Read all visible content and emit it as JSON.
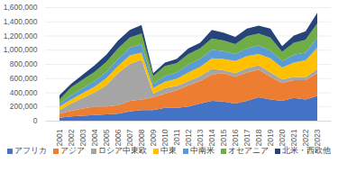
{
  "chart_data": {
    "type": "area",
    "stacked": true,
    "grid": true,
    "categories": [
      "2001",
      "2002",
      "2003",
      "2004",
      "2005",
      "2006",
      "2007",
      "2008",
      "2009",
      "2010",
      "2011",
      "2012",
      "2013",
      "2014",
      "2015",
      "2016",
      "2017",
      "2018",
      "2019",
      "2020",
      "2021",
      "2022",
      "2023"
    ],
    "ylim": [
      0,
      1600000
    ],
    "yticks": [
      0,
      {
        "value": 200000,
        "label": "200,000"
      },
      {
        "value": 400000,
        "label": "400,000"
      },
      {
        "value": 600000,
        "label": "600,000"
      },
      {
        "value": 800000,
        "label": "800,000"
      },
      {
        "value": 1000000,
        "label": "1,000,000"
      },
      {
        "value": 1200000,
        "label": "1,200,000"
      },
      {
        "value": 1400000,
        "label": "1,400,000"
      },
      {
        "value": 1600000,
        "label": "1,600,000"
      }
    ],
    "legend": "bottom",
    "series": [
      {
        "name": "アフリカ",
        "color": "#4472c4",
        "values": [
          40000,
          60000,
          70000,
          80000,
          90000,
          100000,
          130000,
          150000,
          150000,
          180000,
          180000,
          200000,
          240000,
          280000,
          270000,
          240000,
          280000,
          330000,
          300000,
          280000,
          320000,
          300000,
          350000
        ]
      },
      {
        "name": "アジア",
        "color": "#ed7d31",
        "values": [
          60000,
          80000,
          100000,
          120000,
          110000,
          120000,
          150000,
          150000,
          180000,
          200000,
          250000,
          300000,
          320000,
          370000,
          400000,
          380000,
          400000,
          390000,
          320000,
          250000,
          250000,
          270000,
          320000
        ]
      },
      {
        "name": "ロシア中東欧",
        "color": "#a5a5a5",
        "values": [
          50000,
          100000,
          150000,
          200000,
          300000,
          450000,
          520000,
          560000,
          50000,
          80000,
          60000,
          60000,
          70000,
          80000,
          40000,
          50000,
          60000,
          60000,
          60000,
          50000,
          50000,
          40000,
          60000
        ]
      },
      {
        "name": "中東",
        "color": "#ffc000",
        "values": [
          50000,
          60000,
          70000,
          80000,
          100000,
          100000,
          120000,
          100000,
          80000,
          90000,
          100000,
          120000,
          130000,
          150000,
          160000,
          170000,
          170000,
          160000,
          200000,
          170000,
          200000,
          240000,
          300000
        ]
      },
      {
        "name": "中南米",
        "color": "#5b9bd5",
        "values": [
          40000,
          60000,
          70000,
          80000,
          90000,
          100000,
          110000,
          120000,
          60000,
          80000,
          90000,
          110000,
          110000,
          120000,
          110000,
          100000,
          110000,
          120000,
          110000,
          90000,
          110000,
          110000,
          140000
        ]
      },
      {
        "name": "オセアニア",
        "color": "#70ad47",
        "values": [
          60000,
          110000,
          120000,
          130000,
          140000,
          150000,
          140000,
          150000,
          110000,
          140000,
          130000,
          150000,
          150000,
          160000,
          150000,
          140000,
          170000,
          170000,
          180000,
          130000,
          170000,
          180000,
          200000
        ]
      },
      {
        "name": "北米・西欧他",
        "color": "#264478",
        "values": [
          60000,
          50000,
          70000,
          90000,
          100000,
          110000,
          110000,
          120000,
          40000,
          50000,
          60000,
          80000,
          80000,
          120000,
          110000,
          100000,
          110000,
          110000,
          130000,
          80000,
          100000,
          120000,
          150000
        ]
      }
    ]
  }
}
